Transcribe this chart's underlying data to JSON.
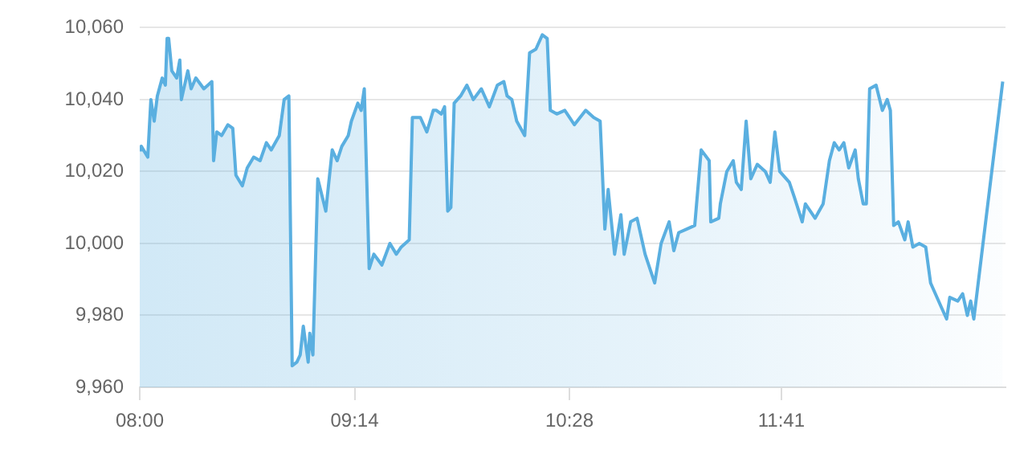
{
  "chart_data": {
    "type": "area",
    "color": "#5aafe0",
    "grid": "y",
    "marker": "none",
    "xlim": [
      8,
      12.97
    ],
    "xticks": [
      {
        "value": 8,
        "label": "08:00"
      },
      {
        "value": 9.2333,
        "label": "09:14"
      },
      {
        "value": 10.4667,
        "label": "10:28"
      },
      {
        "value": 11.6833,
        "label": "11:41"
      }
    ],
    "ylim": [
      9960,
      10060
    ],
    "yticks": [
      {
        "value": 9960,
        "label": "9,960"
      },
      {
        "value": 9980,
        "label": "9,980"
      },
      {
        "value": 10000,
        "label": "10,000"
      },
      {
        "value": 10020,
        "label": "10,020"
      },
      {
        "value": 10040,
        "label": "10,040"
      },
      {
        "value": 10060,
        "label": "10,060"
      }
    ],
    "x": [
      8.0,
      8.009,
      8.046,
      8.064,
      8.083,
      8.101,
      8.129,
      8.147,
      8.157,
      8.166,
      8.184,
      8.212,
      8.23,
      8.239,
      8.276,
      8.295,
      8.322,
      8.368,
      8.414,
      8.424,
      8.442,
      8.47,
      8.506,
      8.534,
      8.552,
      8.589,
      8.617,
      8.654,
      8.691,
      8.727,
      8.755,
      8.801,
      8.829,
      8.856,
      8.875,
      8.902,
      8.921,
      8.939,
      8.967,
      8.976,
      8.994,
      9.022,
      9.068,
      9.105,
      9.133,
      9.16,
      9.197,
      9.215,
      9.252,
      9.271,
      9.289,
      9.317,
      9.344,
      9.39,
      9.436,
      9.473,
      9.501,
      9.547,
      9.565,
      9.611,
      9.648,
      9.685,
      9.703,
      9.731,
      9.75,
      9.768,
      9.786,
      9.805,
      9.842,
      9.878,
      9.915,
      9.961,
      10.007,
      10.053,
      10.09,
      10.109,
      10.136,
      10.164,
      10.21,
      10.238,
      10.274,
      10.311,
      10.339,
      10.357,
      10.394,
      10.44,
      10.468,
      10.495,
      10.56,
      10.606,
      10.643,
      10.67,
      10.689,
      10.726,
      10.762,
      10.781,
      10.818,
      10.855,
      10.901,
      10.956,
      10.993,
      11.039,
      11.066,
      11.094,
      11.14,
      11.186,
      11.223,
      11.269,
      11.278,
      11.324,
      11.333,
      11.37,
      11.407,
      11.425,
      11.453,
      11.481,
      11.508,
      11.545,
      11.591,
      11.619,
      11.646,
      11.674,
      11.729,
      11.757,
      11.803,
      11.821,
      11.849,
      11.877,
      11.923,
      11.959,
      11.987,
      12.015,
      12.042,
      12.07,
      12.107,
      12.125,
      12.153,
      12.171,
      12.19,
      12.227,
      12.263,
      12.291,
      12.309,
      12.328,
      12.355,
      12.392,
      12.411,
      12.438,
      12.475,
      12.512,
      12.54,
      12.604,
      12.632,
      12.65,
      12.696,
      12.724,
      12.751,
      12.77,
      12.788,
      12.954
    ],
    "values": [
      10026,
      10027,
      10024,
      10040,
      10034,
      10041,
      10046,
      10044,
      10057,
      10057,
      10048,
      10046,
      10051,
      10040,
      10048,
      10043,
      10046,
      10043,
      10045,
      10023,
      10031,
      10030,
      10033,
      10032,
      10019,
      10016,
      10021,
      10024,
      10023,
      10028,
      10026,
      10030,
      10040,
      10041,
      9966,
      9967,
      9969,
      9977,
      9967,
      9975,
      9969,
      10018,
      10009,
      10026,
      10023,
      10027,
      10030,
      10034,
      10039,
      10037,
      10043,
      9993,
      9997,
      9994,
      10000,
      9997,
      9999,
      10001,
      10035,
      10035,
      10031,
      10037,
      10037,
      10036,
      10038,
      10009,
      10010,
      10039,
      10041,
      10044,
      10040,
      10043,
      10038,
      10044,
      10045,
      10041,
      10040,
      10034,
      10030,
      10053,
      10054,
      10058,
      10057,
      10037,
      10036,
      10037,
      10035,
      10033,
      10037,
      10035,
      10034,
      10004,
      10015,
      9997,
      10008,
      9997,
      10006,
      10007,
      9997,
      9989,
      10000,
      10006,
      9998,
      10003,
      10004,
      10005,
      10026,
      10023,
      10006,
      10007,
      10011,
      10020,
      10023,
      10017,
      10015,
      10034,
      10018,
      10022,
      10020,
      10017,
      10031,
      10020,
      10017,
      10013,
      10006,
      10011,
      10009,
      10007,
      10011,
      10023,
      10028,
      10026,
      10028,
      10021,
      10026,
      10018,
      10011,
      10011,
      10043,
      10044,
      10037,
      10040,
      10037,
      10005,
      10006,
      10001,
      10006,
      9999,
      10000,
      9999,
      9989,
      9982,
      9979,
      9985,
      9984,
      9986,
      9980,
      9984,
      9979,
      10045
    ]
  }
}
